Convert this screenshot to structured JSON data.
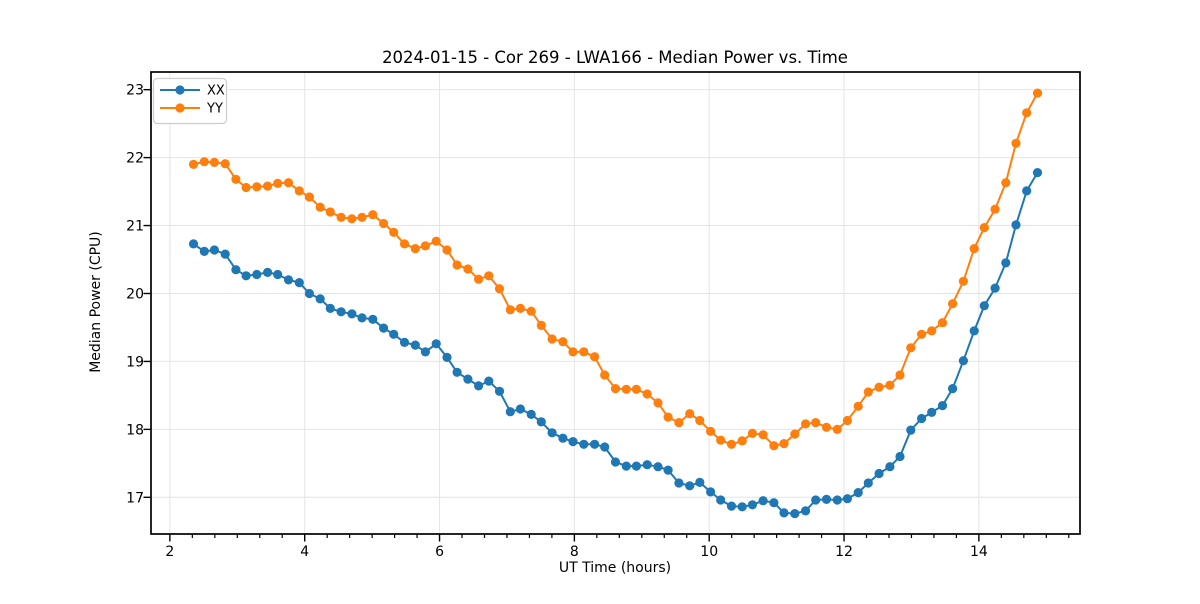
{
  "figure": {
    "title": "2024-01-15 - Cor 269 - LWA166 - Median Power vs. Time",
    "xlabel": "UT Time (hours)",
    "ylabel": "Median Power (CPU)",
    "background": "#ffffff",
    "grid_color": "#e4e4e4",
    "spine_color": "#000000"
  },
  "legend": {
    "items": [
      {
        "label": "XX",
        "color": "#1f77b4"
      },
      {
        "label": "YY",
        "color": "#ff7f0e"
      }
    ]
  },
  "chart_data": {
    "type": "line",
    "title": "2024-01-15 - Cor 269 - LWA166 - Median Power vs. Time",
    "xlabel": "UT Time (hours)",
    "ylabel": "Median Power (CPU)",
    "xlim": [
      1.72,
      15.5
    ],
    "ylim": [
      16.46,
      23.26
    ],
    "xticks": [
      2,
      4,
      6,
      8,
      10,
      12,
      14
    ],
    "yticks": [
      17,
      18,
      19,
      20,
      21,
      22,
      23
    ],
    "x_minor_tick_step": 0.3333,
    "grid": true,
    "legend_position": "upper left",
    "marker": "circle",
    "x": [
      2.35,
      2.51,
      2.66,
      2.82,
      2.98,
      3.13,
      3.29,
      3.45,
      3.6,
      3.76,
      3.92,
      4.07,
      4.23,
      4.38,
      4.54,
      4.7,
      4.85,
      5.01,
      5.17,
      5.32,
      5.48,
      5.64,
      5.79,
      5.95,
      6.11,
      6.26,
      6.42,
      6.58,
      6.73,
      6.89,
      7.05,
      7.2,
      7.36,
      7.51,
      7.67,
      7.83,
      7.98,
      8.14,
      8.3,
      8.45,
      8.61,
      8.77,
      8.92,
      9.08,
      9.24,
      9.39,
      9.55,
      9.71,
      9.86,
      10.02,
      10.17,
      10.33,
      10.49,
      10.64,
      10.8,
      10.96,
      11.11,
      11.27,
      11.43,
      11.58,
      11.74,
      11.9,
      12.05,
      12.21,
      12.36,
      12.52,
      12.68,
      12.83,
      12.99,
      13.15,
      13.3,
      13.46,
      13.61,
      13.77,
      13.93,
      14.08,
      14.24,
      14.4,
      14.55,
      14.71,
      14.87
    ],
    "series": [
      {
        "name": "XX",
        "color": "#1f77b4",
        "values": [
          20.73,
          20.62,
          20.64,
          20.58,
          20.35,
          20.26,
          20.28,
          20.31,
          20.28,
          20.2,
          20.16,
          20.0,
          19.92,
          19.78,
          19.73,
          19.7,
          19.64,
          19.62,
          19.49,
          19.4,
          19.28,
          19.24,
          19.14,
          19.26,
          19.06,
          18.84,
          18.74,
          18.64,
          18.71,
          18.56,
          18.26,
          18.3,
          18.22,
          18.11,
          17.95,
          17.87,
          17.82,
          17.78,
          17.78,
          17.74,
          17.52,
          17.46,
          17.46,
          17.48,
          17.45,
          17.4,
          17.21,
          17.17,
          17.22,
          17.08,
          16.96,
          16.87,
          16.86,
          16.89,
          16.95,
          16.92,
          16.77,
          16.76,
          16.8,
          16.96,
          16.97,
          16.96,
          16.98,
          17.07,
          17.21,
          17.35,
          17.45,
          17.6,
          17.99,
          18.16,
          18.25,
          18.35,
          18.6,
          19.01,
          19.45,
          19.82,
          20.08,
          20.45,
          21.01,
          21.51,
          21.78
        ]
      },
      {
        "name": "YY",
        "color": "#ff7f0e",
        "values": [
          21.9,
          21.94,
          21.93,
          21.91,
          21.68,
          21.56,
          21.57,
          21.58,
          21.62,
          21.63,
          21.51,
          21.42,
          21.27,
          21.2,
          21.12,
          21.1,
          21.12,
          21.16,
          21.03,
          20.9,
          20.73,
          20.66,
          20.7,
          20.77,
          20.64,
          20.42,
          20.36,
          20.21,
          20.26,
          20.07,
          19.76,
          19.78,
          19.74,
          19.53,
          19.33,
          19.29,
          19.14,
          19.14,
          19.07,
          18.8,
          18.6,
          18.59,
          18.59,
          18.52,
          18.39,
          18.18,
          18.1,
          18.23,
          18.13,
          17.97,
          17.84,
          17.78,
          17.83,
          17.94,
          17.92,
          17.76,
          17.79,
          17.93,
          18.08,
          18.1,
          18.03,
          18.0,
          18.13,
          18.34,
          18.55,
          18.62,
          18.65,
          18.8,
          19.2,
          19.4,
          19.45,
          19.57,
          19.85,
          20.18,
          20.66,
          20.97,
          21.24,
          21.63,
          22.21,
          22.66,
          22.95
        ]
      }
    ]
  }
}
